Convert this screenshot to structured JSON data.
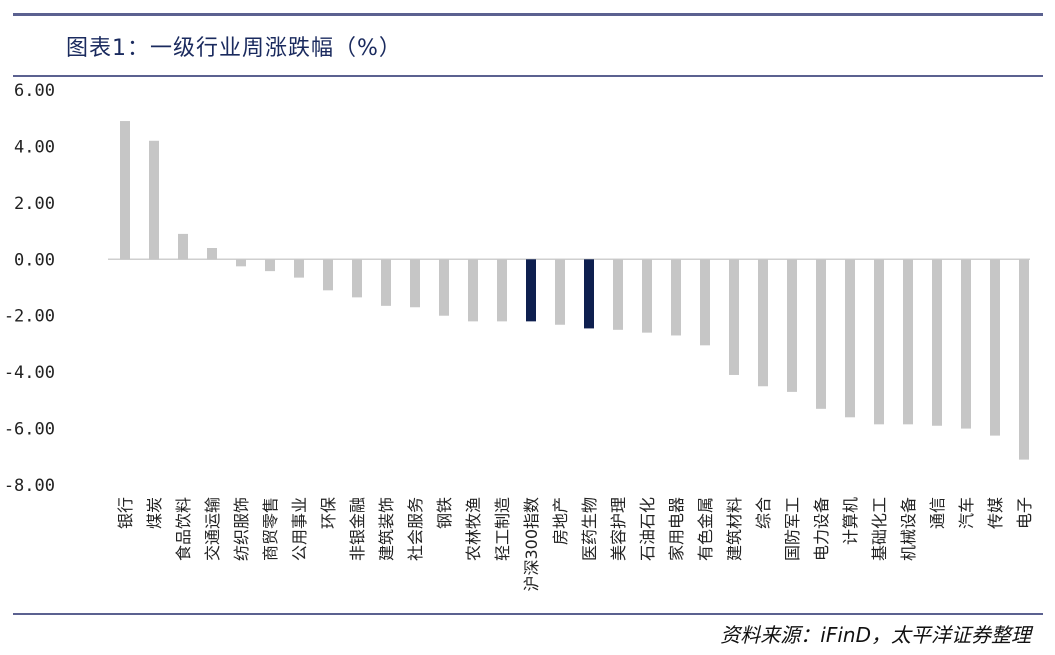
{
  "header": {
    "title": "图表1：一级行业周涨跌幅（%）"
  },
  "footer": {
    "source": "资料来源：iFinD，太平洋证券整理"
  },
  "colors": {
    "bar": "#c6c6c6",
    "highlight": "#0e1f4f",
    "rule": "#5b6190"
  },
  "chart_data": {
    "type": "bar",
    "title": "图表1：一级行业周涨跌幅（%）",
    "categories": [
      "银行",
      "煤炭",
      "食品饮料",
      "交通运输",
      "纺织服饰",
      "商贸零售",
      "公用事业",
      "环保",
      "非银金融",
      "建筑装饰",
      "社会服务",
      "钢铁",
      "农林牧渔",
      "轻工制造",
      "沪深300指数",
      "房地产",
      "医药生物",
      "美容护理",
      "石油石化",
      "家用电器",
      "有色金属",
      "建筑材料",
      "综合",
      "国防军工",
      "电力设备",
      "计算机",
      "基础化工",
      "机械设备",
      "通信",
      "汽车",
      "传媒",
      "电子"
    ],
    "values": [
      4.9,
      4.2,
      0.9,
      0.4,
      -0.25,
      -0.42,
      -0.65,
      -1.1,
      -1.35,
      -1.65,
      -1.7,
      -2.0,
      -2.2,
      -2.2,
      -2.2,
      -2.32,
      -2.45,
      -2.5,
      -2.6,
      -2.7,
      -3.05,
      -4.1,
      -4.5,
      -4.7,
      -5.3,
      -5.6,
      -5.85,
      -5.85,
      -5.9,
      -6.0,
      -6.25,
      -7.1
    ],
    "highlighted": [
      "沪深300指数",
      "医药生物"
    ],
    "yticks": [
      "6.00",
      "4.00",
      "2.00",
      "0.00",
      "-2.00",
      "-4.00",
      "-6.00",
      "-8.00"
    ],
    "ylim": [
      -8,
      6
    ],
    "grid": false,
    "xlabel": "",
    "ylabel": ""
  }
}
